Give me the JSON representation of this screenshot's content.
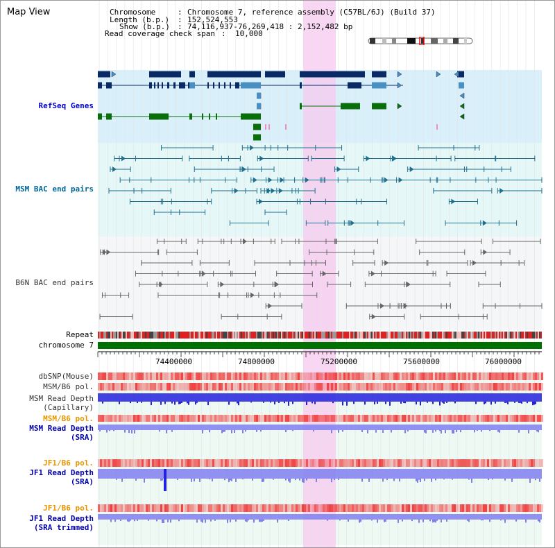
{
  "header": {
    "title": "Map View",
    "chromosome_label": "Chromosome",
    "chromosome_value": "Chromosome 7, reference assembly (C57BL/6J) (Build 37)",
    "length_label": "Length (b.p.)",
    "length_value": "152,524,553",
    "show_label": "Show (b.p.)",
    "show_value": "74,116,937-76,269,418 : 2,152,482 bp",
    "coverage_label": "Read coverage check span",
    "coverage_value": "10,000"
  },
  "tracks": {
    "refseq": "RefSeq Genes",
    "msm_bac": "MSM BAC end pairs",
    "b6n_bac": "B6N BAC end pairs",
    "repeat": "Repeat",
    "chromosome": "chromosome 7",
    "dbsnp": "dbSNP(Mouse)",
    "msm_b6_pol": "MSM/B6 pol.",
    "msm_read_depth_cap_1": "MSM Read Depth",
    "msm_read_depth_cap_2": "(Capillary)",
    "msm_b6_pol_2": "MSM/B6 pol.",
    "msm_read_depth_sra_1": "MSM Read Depth",
    "msm_read_depth_sra_2": "(SRA)",
    "jf1_b6_pol": "JF1/B6 pol.",
    "jf1_read_depth_sra_1": "JF1 Read Depth",
    "jf1_read_depth_sra_2": "(SRA)",
    "jf1_b6_pol_2": "JF1/B6 pol.",
    "jf1_read_depth_trim_1": "JF1 Read Depth",
    "jf1_read_depth_trim_2": "(SRA trimmed)"
  },
  "axis": {
    "ticks": [
      "74400000",
      "74800000",
      "75200000",
      "75600000",
      "76000000"
    ]
  },
  "colors": {
    "refseq_bg": "#d9f0fa",
    "track_bg": "#e6f7f7",
    "gene_navy": "#0a2a66",
    "gene_blue": "#4a8fc2",
    "gene_green": "#0a6e0a",
    "chromosome_green": "#007000",
    "highlight": "#f7c8ef",
    "depth_blue": "#2222dd",
    "depth_lavender": "#7f7ff0",
    "pol_red": "#ef4040"
  },
  "icons": {
    "ideogram": "chromosome-ideogram-icon"
  }
}
